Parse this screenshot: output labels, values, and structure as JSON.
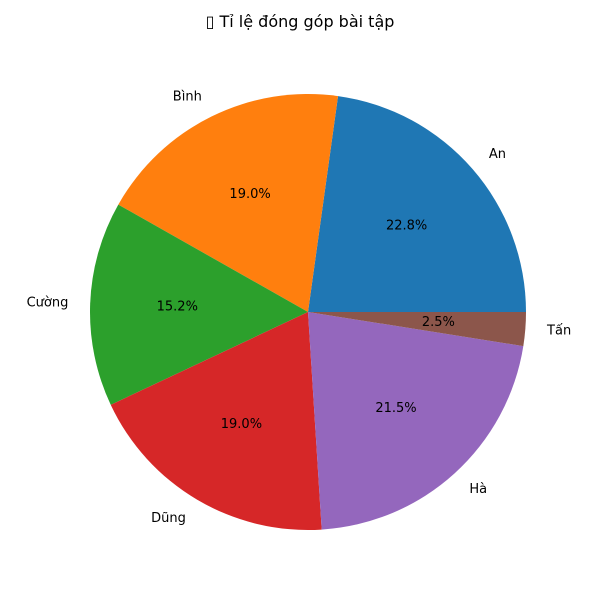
{
  "chart_data": {
    "type": "pie",
    "title": "▯ Tỉ lệ đóng góp bài tập",
    "categories": [
      "An",
      "Bình",
      "Cường",
      "Dũng",
      "Hà",
      "Tấn"
    ],
    "values": [
      22.8,
      19.0,
      15.2,
      19.0,
      21.5,
      2.5
    ],
    "percent_labels": [
      "22.8%",
      "19.0%",
      "15.2%",
      "19.0%",
      "21.5%",
      "2.5%"
    ],
    "colors": [
      "#1f77b4",
      "#ff7f0e",
      "#2ca02c",
      "#d62728",
      "#9467bd",
      "#8c564b"
    ]
  }
}
